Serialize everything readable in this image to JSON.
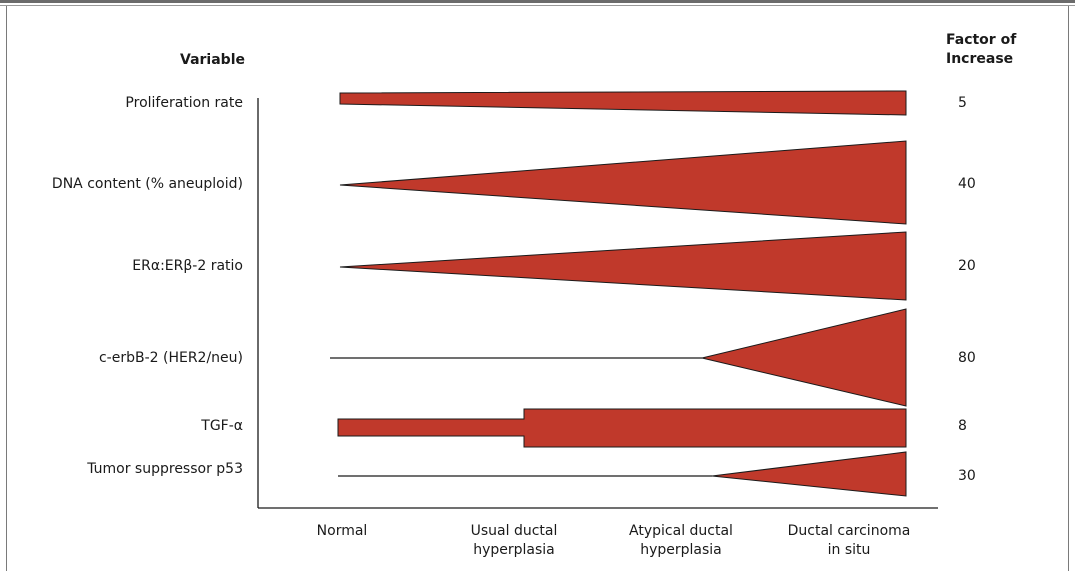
{
  "header": {
    "variable": "Variable",
    "factor_line1": "Factor of",
    "factor_line2": "Increase"
  },
  "colors": {
    "wedge": "#c0392b",
    "outline": "#1a1a1a"
  },
  "rows": [
    {
      "label": "Proliferation rate",
      "factor": "5"
    },
    {
      "label": "DNA content (% aneuploid)",
      "factor": "40"
    },
    {
      "label": "ERα:ERβ-2 ratio",
      "factor": "20"
    },
    {
      "label": "c-erbB-2 (HER2/neu)",
      "factor": "80"
    },
    {
      "label": "TGF-α",
      "factor": "8"
    },
    {
      "label": "Tumor suppressor p53",
      "factor": "30"
    }
  ],
  "stages": [
    {
      "line1": "Normal",
      "line2": ""
    },
    {
      "line1": "Usual ductal",
      "line2": "hyperplasia"
    },
    {
      "line1": "Atypical ductal",
      "line2": "hyperplasia"
    },
    {
      "line1": "Ductal carcinoma",
      "line2": "in situ"
    }
  ]
}
